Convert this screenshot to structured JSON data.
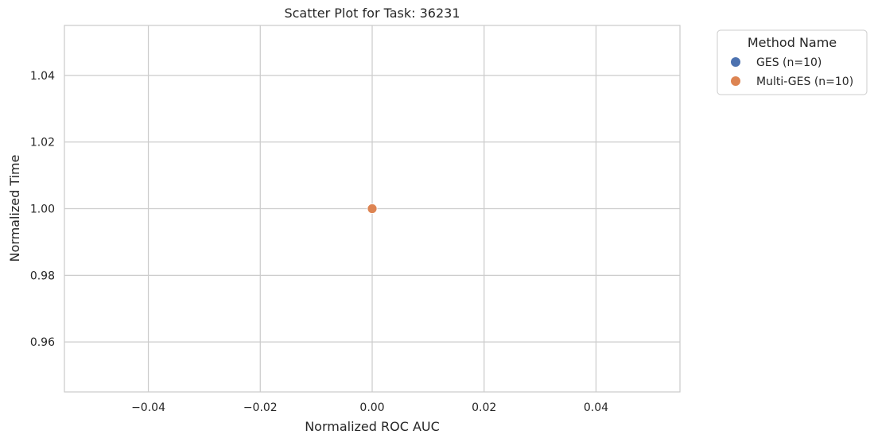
{
  "chart_data": {
    "type": "scatter",
    "title": "Scatter Plot for Task: 36231",
    "xlabel": "Normalized ROC AUC",
    "ylabel": "Normalized Time",
    "xlim": [
      -0.055,
      0.055
    ],
    "ylim": [
      0.945,
      1.055
    ],
    "xticks": [
      -0.04,
      -0.02,
      0.0,
      0.02,
      0.04
    ],
    "xtick_labels": [
      "−0.04",
      "−0.02",
      "0.00",
      "0.02",
      "0.04"
    ],
    "yticks": [
      0.96,
      0.98,
      1.0,
      1.02,
      1.04
    ],
    "ytick_labels": [
      "0.96",
      "0.98",
      "1.00",
      "1.02",
      "1.04"
    ],
    "grid": true,
    "legend": {
      "title": "Method Name",
      "placement": "outside-top-right",
      "entries": [
        "GES (n=10)",
        "Multi-GES (n=10)"
      ]
    },
    "series": [
      {
        "name": "GES (n=10)",
        "color": "#4c72b0",
        "points": [
          [
            0.0,
            1.0
          ]
        ]
      },
      {
        "name": "Multi-GES (n=10)",
        "color": "#dd8452",
        "points": [
          [
            0.0,
            1.0
          ]
        ]
      }
    ]
  }
}
